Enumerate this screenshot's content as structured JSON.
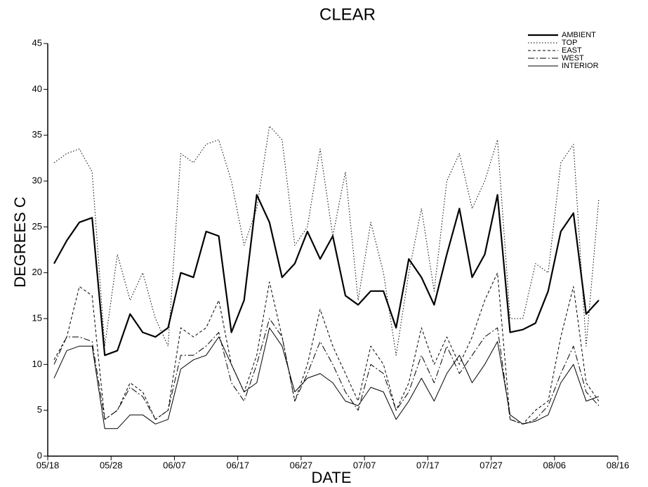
{
  "chart_data": {
    "type": "line",
    "title": "CLEAR",
    "xlabel": "DATE",
    "ylabel": "DEGREES C",
    "x": [
      "05/19",
      "05/21",
      "05/23",
      "05/25",
      "05/27",
      "05/29",
      "05/31",
      "06/02",
      "06/04",
      "06/06",
      "06/08",
      "06/10",
      "06/12",
      "06/14",
      "06/16",
      "06/18",
      "06/20",
      "06/22",
      "06/24",
      "06/26",
      "06/28",
      "06/30",
      "07/02",
      "07/04",
      "07/06",
      "07/08",
      "07/10",
      "07/12",
      "07/14",
      "07/16",
      "07/18",
      "07/20",
      "07/22",
      "07/24",
      "07/26",
      "07/28",
      "07/30",
      "08/01",
      "08/03",
      "08/05",
      "08/07",
      "08/09",
      "08/11",
      "08/13"
    ],
    "series": [
      {
        "name": "AMBIENT",
        "color": "#000000",
        "dash": "thick",
        "values": [
          21,
          23.5,
          25.5,
          26,
          11,
          11.5,
          15.5,
          13.5,
          13,
          14,
          20,
          19.5,
          24.5,
          24,
          13.5,
          17,
          28.5,
          25.5,
          19.5,
          21,
          24.5,
          21.5,
          24,
          17.5,
          16.5,
          18,
          18,
          14,
          21.5,
          19.5,
          16.5,
          22,
          27,
          19.5,
          22,
          28.5,
          13.5,
          13.8,
          14.5,
          18,
          24.5,
          26.5,
          15.5,
          17
        ]
      },
      {
        "name": "TOP",
        "color": "#000000",
        "dash": "dotted",
        "values": [
          32,
          33,
          33.5,
          31,
          12,
          22,
          17,
          20,
          15,
          12,
          33,
          32,
          34,
          34.5,
          30,
          23,
          27,
          36,
          34.5,
          23,
          25,
          33.5,
          24,
          31,
          17,
          25.5,
          20,
          11,
          20,
          27,
          18,
          30,
          33,
          27,
          30,
          34.5,
          15,
          15,
          21,
          20,
          32,
          34,
          12,
          28
        ]
      },
      {
        "name": "EAST",
        "color": "#000000",
        "dash": "dashed",
        "values": [
          10.5,
          13,
          18.5,
          17.5,
          4,
          5,
          8,
          7,
          4,
          5,
          14,
          13,
          14,
          17,
          10,
          7,
          11,
          19,
          13,
          6,
          10,
          16,
          12,
          9,
          6,
          12,
          10,
          5,
          8,
          14,
          10,
          13,
          10,
          13,
          17,
          20,
          4,
          3.5,
          5,
          6,
          13,
          18.5,
          8,
          6
        ]
      },
      {
        "name": "WEST",
        "color": "#000000",
        "dash": "dashdot",
        "values": [
          10,
          13,
          13,
          12.5,
          4,
          5,
          7.5,
          6.5,
          4,
          5,
          11,
          11,
          12,
          13.5,
          8,
          6,
          10,
          15,
          13,
          6,
          9,
          12.5,
          10,
          7,
          5,
          10,
          9,
          5,
          7,
          11,
          8,
          12,
          9,
          11,
          13,
          14,
          4,
          3.5,
          4,
          5.5,
          9,
          12,
          7,
          5.5
        ]
      },
      {
        "name": "INTERIOR",
        "color": "#000000",
        "dash": "solid",
        "values": [
          8.5,
          11.5,
          12,
          12,
          3,
          3,
          4.5,
          4.5,
          3.5,
          4,
          9.5,
          10.5,
          11,
          13,
          10,
          7,
          8,
          14,
          12,
          7,
          8.5,
          9,
          8,
          6,
          5.5,
          7.5,
          7,
          4,
          6,
          8.5,
          6,
          9,
          11,
          8,
          10,
          12.5,
          4.5,
          3.5,
          3.8,
          4.5,
          8,
          10,
          6,
          6.5
        ]
      }
    ],
    "xlim": [
      "05/18",
      "08/16"
    ],
    "xticks": [
      "05/18",
      "05/28",
      "06/07",
      "06/17",
      "06/27",
      "07/07",
      "07/17",
      "07/27",
      "08/06",
      "08/16"
    ],
    "ylim": [
      0,
      45
    ],
    "yticks": [
      0,
      5,
      10,
      15,
      20,
      25,
      30,
      35,
      40,
      45
    ],
    "legend": "upper right"
  }
}
